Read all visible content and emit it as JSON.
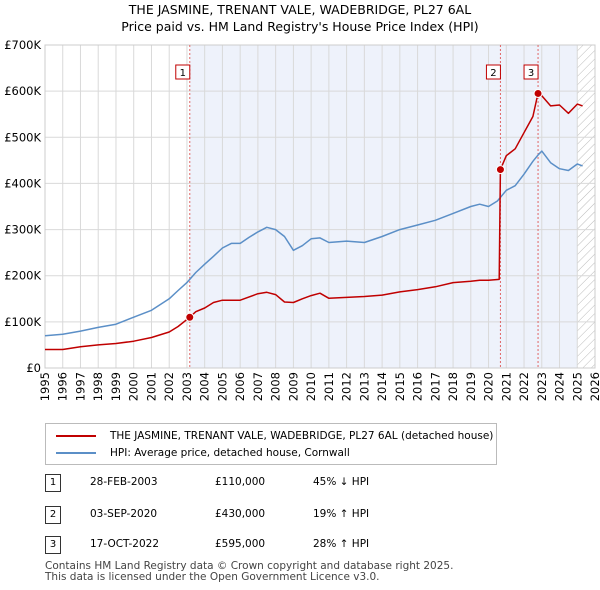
{
  "title_line1": "THE JASMINE, TRENANT VALE, WADEBRIDGE, PL27 6AL",
  "title_line2": "Price paid vs. HM Land Registry's House Price Index (HPI)",
  "chart_data": {
    "type": "line",
    "x_range": [
      1995,
      2026
    ],
    "ylim": [
      0,
      700000
    ],
    "y_ticks": [
      0,
      100000,
      200000,
      300000,
      400000,
      500000,
      600000,
      700000
    ],
    "y_tick_labels": [
      "£0",
      "£100K",
      "£200K",
      "£300K",
      "£400K",
      "£500K",
      "£600K",
      "£700K"
    ],
    "x_ticks": [
      1995,
      1996,
      1997,
      1998,
      1999,
      2000,
      2001,
      2002,
      2003,
      2004,
      2005,
      2006,
      2007,
      2008,
      2009,
      2010,
      2011,
      2012,
      2013,
      2014,
      2015,
      2016,
      2017,
      2018,
      2019,
      2020,
      2021,
      2022,
      2023,
      2024,
      2025,
      2026
    ],
    "x_tick_labels": [
      "1995",
      "1996",
      "1997",
      "1998",
      "1999",
      "2000",
      "2001",
      "2002",
      "2003",
      "2004",
      "2005",
      "2006",
      "2007",
      "2008",
      "2009",
      "2010",
      "2011",
      "2012",
      "2013",
      "2014",
      "2015",
      "2016",
      "2017",
      "2018",
      "2019",
      "2020",
      "2021",
      "2022",
      "2023",
      "2024",
      "2025",
      "2026"
    ],
    "shaded_start": 2003.16,
    "hatch_start": 2025.0,
    "series": [
      {
        "name": "THE JASMINE, TRENANT VALE, WADEBRIDGE, PL27 6AL (detached house)",
        "color": "#c00000",
        "x": [
          1995,
          1996,
          1997,
          1998,
          1999,
          2000,
          2001,
          2002,
          2002.5,
          2003.16,
          2003.5,
          2004,
          2004.5,
          2005,
          2006,
          2007,
          2007.5,
          2008,
          2008.5,
          2009,
          2009.5,
          2010,
          2010.5,
          2011,
          2012,
          2013,
          2014,
          2015,
          2016,
          2017,
          2018,
          2019,
          2019.5,
          2020,
          2020.6,
          2020.67,
          2021,
          2021.5,
          2022,
          2022.5,
          2022.79,
          2023,
          2023.5,
          2024,
          2024.5,
          2025,
          2025.3
        ],
        "values": [
          40000,
          40000,
          46000,
          50000,
          53000,
          58000,
          66000,
          78000,
          90000,
          110000,
          122000,
          130000,
          142000,
          147000,
          147000,
          161000,
          164000,
          159000,
          143000,
          142000,
          150000,
          157000,
          162000,
          151000,
          153000,
          155000,
          158000,
          165000,
          170000,
          176000,
          185000,
          188000,
          190000,
          190000,
          192000,
          430000,
          460000,
          475000,
          510000,
          545000,
          595000,
          590000,
          568000,
          570000,
          552000,
          572000,
          568000
        ]
      },
      {
        "name": "HPI: Average price, detached house, Cornwall",
        "color": "#5b8fc7",
        "x": [
          1995,
          1996,
          1997,
          1998,
          1999,
          2000,
          2001,
          2002,
          2002.5,
          2003,
          2003.5,
          2004,
          2004.5,
          2005,
          2005.5,
          2006,
          2006.5,
          2007,
          2007.5,
          2008,
          2008.5,
          2009,
          2009.5,
          2010,
          2010.5,
          2011,
          2012,
          2013,
          2014,
          2015,
          2016,
          2017,
          2018,
          2019,
          2019.5,
          2020,
          2020.5,
          2021,
          2021.5,
          2022,
          2022.5,
          2022.8,
          2023,
          2023.5,
          2024,
          2024.5,
          2025,
          2025.3
        ],
        "values": [
          70000,
          73000,
          80000,
          88000,
          95000,
          110000,
          125000,
          150000,
          168000,
          185000,
          207000,
          225000,
          242000,
          260000,
          270000,
          270000,
          283000,
          295000,
          305000,
          300000,
          285000,
          255000,
          265000,
          280000,
          282000,
          272000,
          275000,
          272000,
          285000,
          300000,
          310000,
          320000,
          335000,
          350000,
          355000,
          350000,
          362000,
          385000,
          395000,
          420000,
          448000,
          462000,
          470000,
          445000,
          432000,
          428000,
          442000,
          438000
        ]
      }
    ],
    "sales": [
      {
        "label": "1",
        "x": 2003.16,
        "value": 110000
      },
      {
        "label": "2",
        "x": 2020.67,
        "value": 430000
      },
      {
        "label": "3",
        "x": 2022.79,
        "value": 595000
      }
    ]
  },
  "legend": {
    "property_label": "THE JASMINE, TRENANT VALE, WADEBRIDGE, PL27 6AL (detached house)",
    "hpi_label": "HPI: Average price, detached house, Cornwall"
  },
  "sales_table": [
    {
      "num": "1",
      "date": "28-FEB-2003",
      "price": "£110,000",
      "hpi": "45% ↓ HPI"
    },
    {
      "num": "2",
      "date": "03-SEP-2020",
      "price": "£430,000",
      "hpi": "19% ↑ HPI"
    },
    {
      "num": "3",
      "date": "17-OCT-2022",
      "price": "£595,000",
      "hpi": "28% ↑ HPI"
    }
  ],
  "footer_line1": "Contains HM Land Registry data © Crown copyright and database right 2025.",
  "footer_line2": "This data is licensed under the Open Government Licence v3.0."
}
